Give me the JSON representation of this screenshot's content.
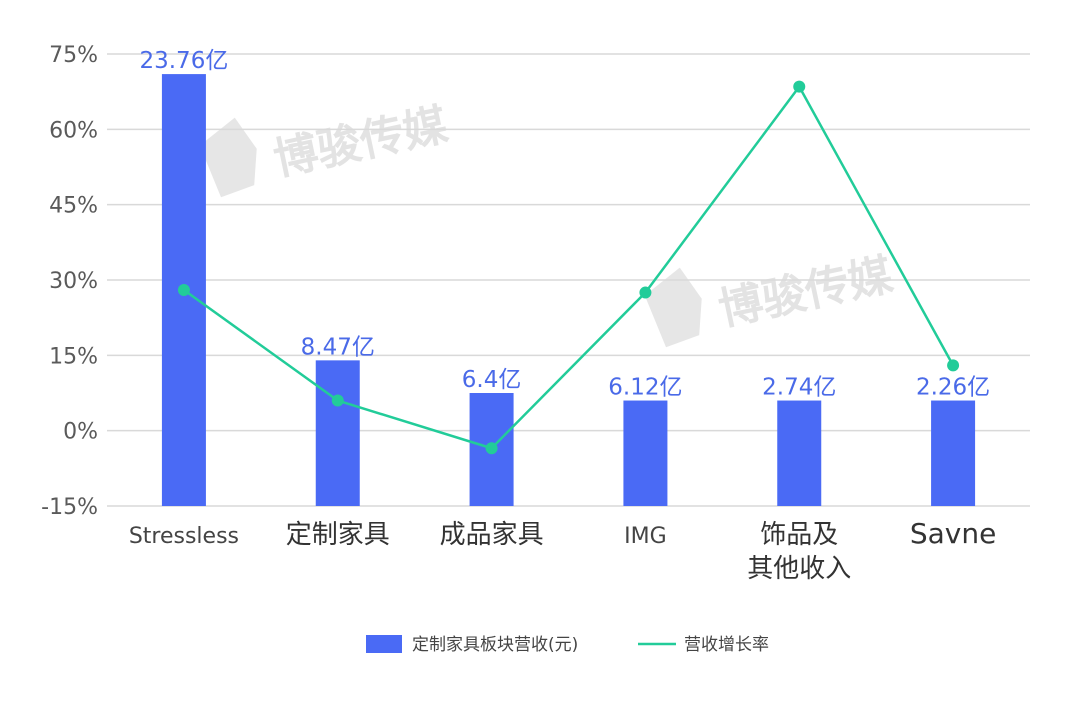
{
  "chart_data": {
    "type": "bar",
    "title": "",
    "xlabel": "",
    "ylabel": "",
    "categories": [
      "Stressless",
      "定制家具",
      "成品家具",
      "IMG",
      "饰品及\n其他收入",
      "Savne"
    ],
    "series": [
      {
        "name": "定制家具板块营收(元)",
        "type": "bar",
        "color": "#4a6af5",
        "values": [
          23.76,
          8.47,
          6.4,
          6.12,
          2.74,
          2.26
        ],
        "labels": [
          "23.76亿",
          "8.47亿",
          "6.4亿",
          "6.12亿",
          "2.74亿",
          "2.26亿"
        ],
        "bar_pct_values": [
          71,
          14,
          7.5,
          6,
          6,
          6
        ]
      },
      {
        "name": "营收增长率",
        "type": "line",
        "color": "#22cc99",
        "values": [
          28,
          6,
          -3.5,
          27.5,
          68.5,
          13
        ]
      }
    ],
    "ylim": [
      -15,
      75
    ],
    "yticks": [
      -15,
      0,
      15,
      30,
      45,
      60,
      75
    ],
    "ytick_labels": [
      "-15%",
      "0%",
      "15%",
      "30%",
      "45%",
      "60%",
      "75%"
    ],
    "grid": true,
    "legend_position": "bottom"
  },
  "watermark": "博骏传媒"
}
